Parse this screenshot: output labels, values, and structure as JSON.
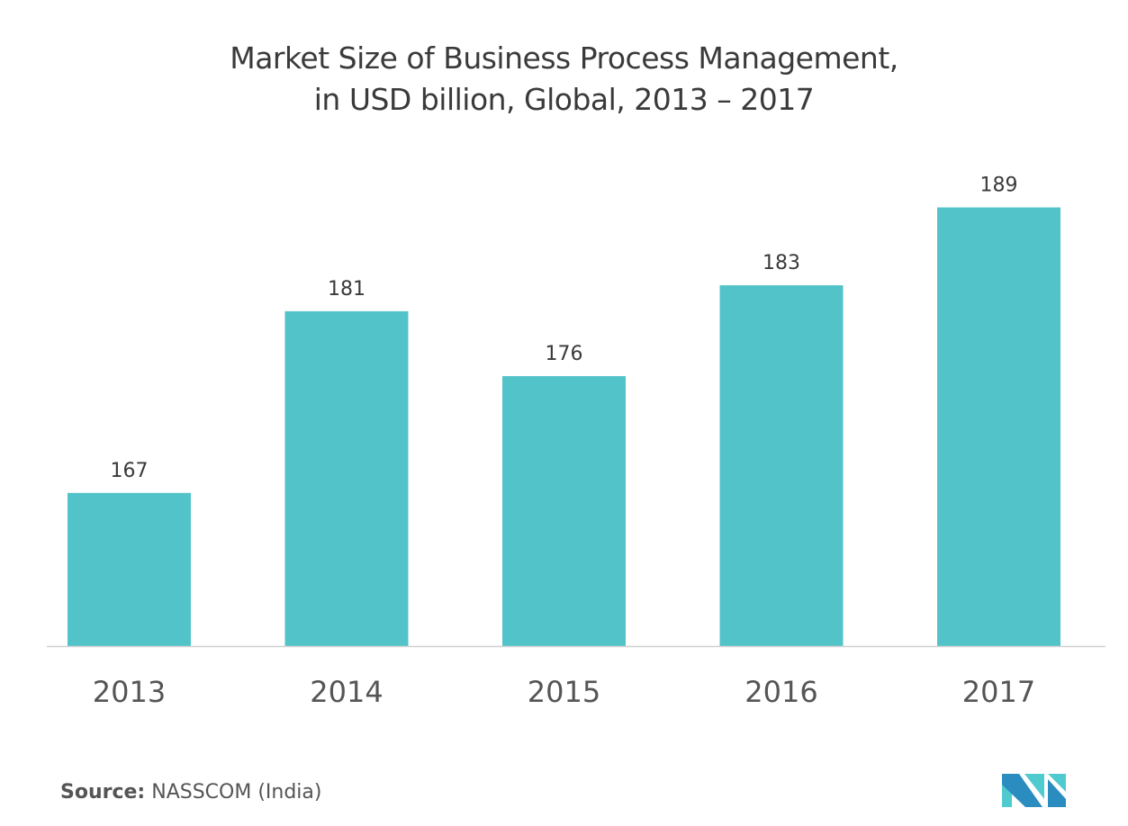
{
  "chart_data": {
    "type": "bar",
    "title": "Market Size of Business Process Management,",
    "subtitle": "in USD billion, Global, 2013 – 2017",
    "categories": [
      "2013",
      "2014",
      "2015",
      "2016",
      "2017"
    ],
    "values": [
      167,
      181,
      176,
      183,
      189
    ],
    "xlabel": "",
    "ylabel": "",
    "ylim": [
      155.2,
      195
    ],
    "grid": false,
    "bar_color": "#52c3c9"
  },
  "source": {
    "label": "Source:",
    "text": "NASSCOM (India)"
  },
  "logo": {
    "colors": [
      "#2b8cc0",
      "#4fcbcf"
    ]
  }
}
